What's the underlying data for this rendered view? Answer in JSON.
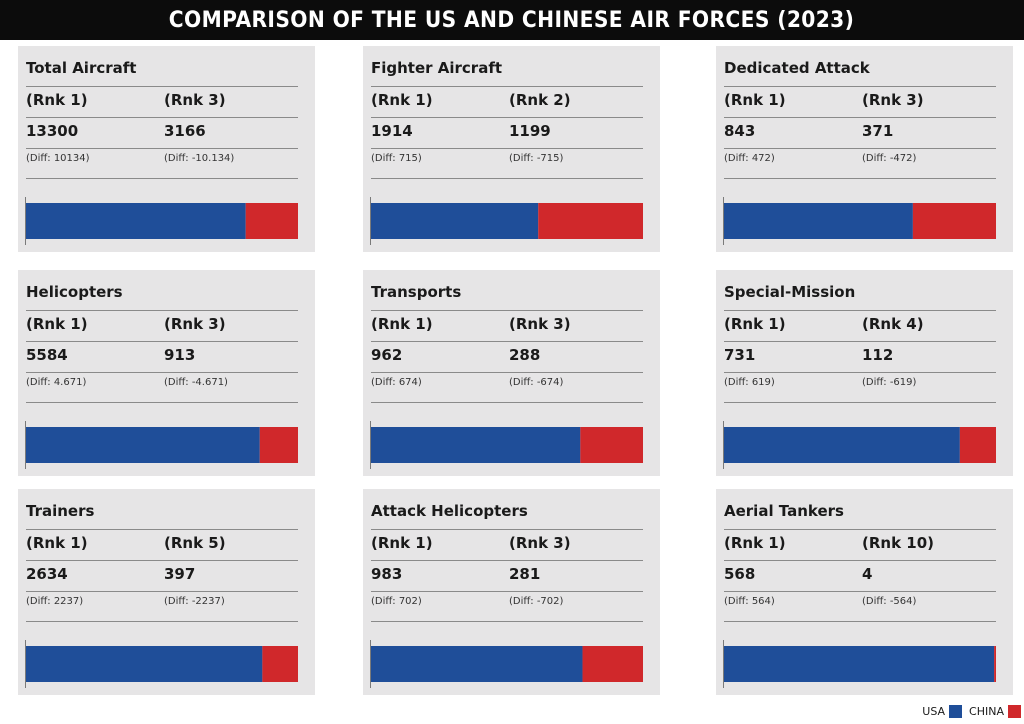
{
  "title": "COMPARISON OF THE US AND CHINESE AIR FORCES (2023)",
  "colors": {
    "usa": "#1f4e99",
    "china": "#d0282b",
    "panel_bg": "#e6e5e6"
  },
  "legend": {
    "usa": "USA",
    "china": "CHINA"
  },
  "chart_data": [
    {
      "type": "bar",
      "title": "Total Aircraft",
      "rank_usa": "(Rnk 1)",
      "rank_china": "(Rnk 3)",
      "usa": 13300,
      "china": 3166,
      "usa_label": "13300",
      "china_label": "3166",
      "diff_usa": "(Diff: 10134)",
      "diff_china": "(Diff: -10.134)"
    },
    {
      "type": "bar",
      "title": "Fighter Aircraft",
      "rank_usa": "(Rnk 1)",
      "rank_china": "(Rnk 2)",
      "usa": 1914,
      "china": 1199,
      "usa_label": "1914",
      "china_label": "1199",
      "diff_usa": "(Diff: 715)",
      "diff_china": "(Diff: -715)"
    },
    {
      "type": "bar",
      "title": "Dedicated Attack",
      "rank_usa": "(Rnk 1)",
      "rank_china": "(Rnk 3)",
      "usa": 843,
      "china": 371,
      "usa_label": "843",
      "china_label": "371",
      "diff_usa": "(Diff: 472)",
      "diff_china": "(Diff: -472)"
    },
    {
      "type": "bar",
      "title": "Helicopters",
      "rank_usa": "(Rnk 1)",
      "rank_china": "(Rnk 3)",
      "usa": 5584,
      "china": 913,
      "usa_label": "5584",
      "china_label": "913",
      "diff_usa": "(Diff: 4.671)",
      "diff_china": "(Diff: -4.671)"
    },
    {
      "type": "bar",
      "title": "Transports",
      "rank_usa": "(Rnk 1)",
      "rank_china": "(Rnk 3)",
      "usa": 962,
      "china": 288,
      "usa_label": "962",
      "china_label": "288",
      "diff_usa": "(Diff: 674)",
      "diff_china": "(Diff: -674)"
    },
    {
      "type": "bar",
      "title": "Special-Mission",
      "rank_usa": "(Rnk 1)",
      "rank_china": "(Rnk 4)",
      "usa": 731,
      "china": 112,
      "usa_label": "731",
      "china_label": "112",
      "diff_usa": "(Diff: 619)",
      "diff_china": "(Diff: -619)"
    },
    {
      "type": "bar",
      "title": "Trainers",
      "rank_usa": "(Rnk 1)",
      "rank_china": "(Rnk 5)",
      "usa": 2634,
      "china": 397,
      "usa_label": "2634",
      "china_label": "397",
      "diff_usa": "(Diff: 2237)",
      "diff_china": "(Diff: -2237)"
    },
    {
      "type": "bar",
      "title": "Attack Helicopters",
      "rank_usa": "(Rnk 1)",
      "rank_china": "(Rnk 3)",
      "usa": 983,
      "china": 281,
      "usa_label": "983",
      "china_label": "281",
      "diff_usa": "(Diff: 702)",
      "diff_china": "(Diff: -702)"
    },
    {
      "type": "bar",
      "title": "Aerial Tankers",
      "rank_usa": "(Rnk 1)",
      "rank_china": "(Rnk 10)",
      "usa": 568,
      "china": 4,
      "usa_label": "568",
      "china_label": "4",
      "diff_usa": "(Diff: 564)",
      "diff_china": "(Diff: -564)"
    }
  ]
}
